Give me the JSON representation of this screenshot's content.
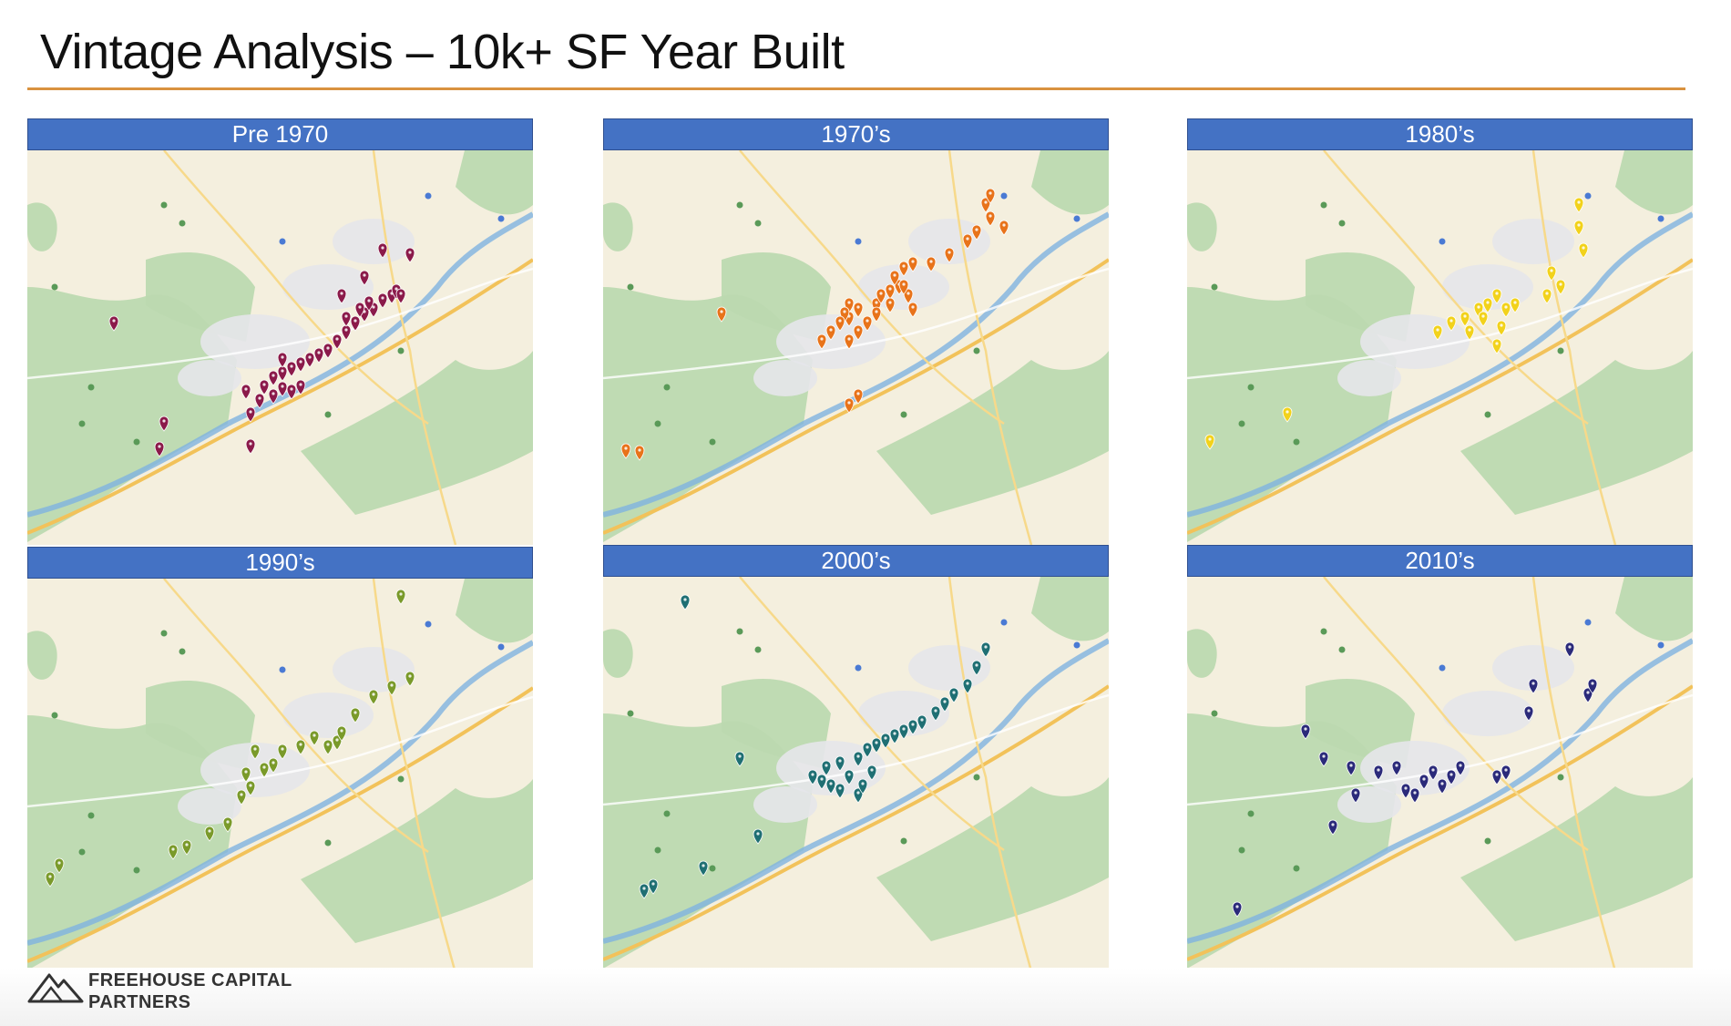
{
  "slide": {
    "title": "Vintage Analysis – 10k+ SF Year Built",
    "accent_color": "#d9923f",
    "header_color": "#4472c4"
  },
  "panels": [
    {
      "id": "pre1970",
      "label": "Pre 1970",
      "marker_color": "#8b1a4a"
    },
    {
      "id": "1970s",
      "label": "1970’s",
      "marker_color": "#e8731a"
    },
    {
      "id": "1980s",
      "label": "1980’s",
      "marker_color": "#f2d21b"
    },
    {
      "id": "1990s",
      "label": "1990’s",
      "marker_color": "#7a9a2a"
    },
    {
      "id": "2000s",
      "label": "2000’s",
      "marker_color": "#1f6f73"
    },
    {
      "id": "2010s",
      "label": "2010’s",
      "marker_color": "#2b2a7a"
    }
  ],
  "footer": {
    "logo_icon": "mountain-logo-icon",
    "company_line1": "FREEHOUSE CAPITAL",
    "company_line2": "PARTNERS"
  }
}
